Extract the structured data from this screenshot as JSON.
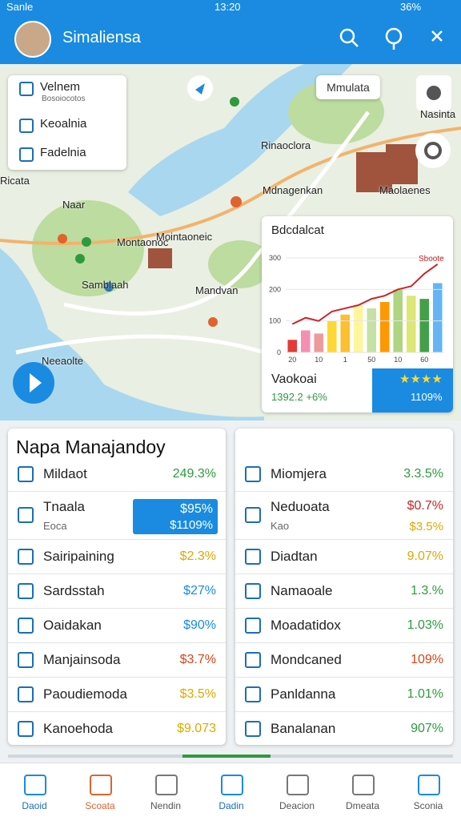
{
  "status_bar": {
    "carrier": "Sanle",
    "time": "13:20",
    "battery": "36%"
  },
  "app_bar": {
    "title": "Simaliensa"
  },
  "map": {
    "layers": [
      "Velnem",
      "Bosoiocotos",
      "Keoalnia",
      "Fadelnia"
    ],
    "search_label": "Mmulata",
    "labels": [
      "Rinaoclora",
      "Mdnagenkan",
      "Maolaenes",
      "Nasinta",
      "Ricata",
      "Naar",
      "Montaonoc",
      "Mointaoneic",
      "Samblaah",
      "Mandvan",
      "Neeaolte"
    ]
  },
  "chart": {
    "title": "Bdcdalcat",
    "legend": "Sboote",
    "ylim": [
      0,
      300
    ],
    "yticks": [
      0,
      100,
      200,
      300
    ],
    "categories": [
      "20",
      null,
      "10",
      null,
      "1",
      null,
      "50",
      null,
      "10",
      null,
      "60",
      null
    ],
    "bars": [
      40,
      70,
      60,
      100,
      120,
      150,
      140,
      160,
      200,
      180,
      170,
      220
    ],
    "bar_colors": [
      "#e53935",
      "#f48fb1",
      "#ef9a9a",
      "#fdd835",
      "#fbc02d",
      "#fff59d",
      "#c5e1a5",
      "#ff9800",
      "#aed581",
      "#dce775",
      "#43a047",
      "#64b5f6"
    ],
    "line": [
      90,
      110,
      100,
      130,
      140,
      150,
      170,
      180,
      200,
      210,
      250,
      280
    ],
    "line_color": "#c62828",
    "footer": {
      "label": "Vaokoai",
      "value": "1392.2 +6%",
      "stars": "★★★★",
      "rating": "1109%"
    }
  },
  "left_panel": {
    "title": "Napa Manajandoy",
    "rows": [
      {
        "label": "Mildaot",
        "value": "249.3%",
        "color": "#2e9a3e"
      },
      {
        "label": "Tnaala",
        "sub": "Eoca",
        "value": "$95%",
        "sub_value": "$1109%",
        "highlight": true
      },
      {
        "label": "Sairipaining",
        "value": "$2.3%",
        "color": "#e0a800"
      },
      {
        "label": "Sardsstah",
        "value": "$27%",
        "color": "#1a8be0"
      },
      {
        "label": "Oaidakan",
        "value": "$90%",
        "color": "#1a8be0"
      },
      {
        "label": "Manjainsoda",
        "value": "$3.7%",
        "color": "#d84315"
      },
      {
        "label": "Paoudiemoda",
        "value": "$3.5%",
        "color": "#e0a800"
      },
      {
        "label": "Kanoehoda",
        "value": "$9.073",
        "color": "#e0a800"
      }
    ]
  },
  "right_panel": {
    "rows": [
      {
        "label": "Miomjera",
        "value": "3.3.5%",
        "color": "#2e9a3e"
      },
      {
        "label": "Neduoata",
        "sub": "Kao",
        "value": "$0.7%",
        "sub_value": "$3.5%",
        "color": "#c62828",
        "sub_color": "#e0a800"
      },
      {
        "label": "Diadtan",
        "value": "9.07%",
        "color": "#e0a800"
      },
      {
        "label": "Namaoale",
        "value": "1.3.%",
        "color": "#2e9a3e"
      },
      {
        "label": "Moadatidox",
        "value": "1.03%",
        "color": "#2e9a3e"
      },
      {
        "label": "Mondcaned",
        "value": "109%",
        "color": "#d84315"
      },
      {
        "label": "Panldanna",
        "value": "1.01%",
        "color": "#2e9a3e"
      },
      {
        "label": "Banalanan",
        "value": "907%",
        "color": "#2e9a3e"
      }
    ]
  },
  "nav": [
    "Daoid",
    "Scoata",
    "Nendin",
    "Dadin",
    "Deacion",
    "Dmeata",
    "Sconia"
  ]
}
